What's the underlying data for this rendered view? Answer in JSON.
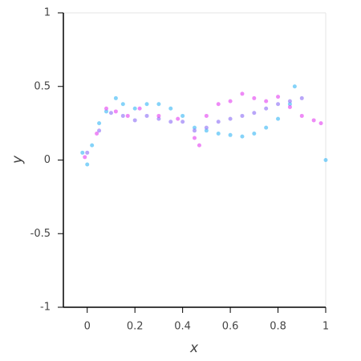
{
  "chart_data": {
    "type": "scatter",
    "x_label": "x",
    "y_label": "y",
    "xlim": [
      -0.1,
      1
    ],
    "ylim": [
      -1,
      1
    ],
    "xticks": [
      0,
      0.2,
      0.4,
      0.6,
      0.8,
      1
    ],
    "yticks": [
      -1,
      -0.5,
      0,
      0.5,
      1
    ],
    "groups": [
      {
        "color": "#33b5f5",
        "x": [
          -0.02,
          0,
          0.02,
          0.05,
          0.08,
          0.12,
          0.15,
          0.2,
          0.25,
          0.3,
          0.35,
          0.4,
          0.45,
          0.5,
          0.55,
          0.6,
          0.65,
          0.7,
          0.75,
          0.8,
          0.85,
          0.87,
          1.0
        ],
        "y": [
          0.05,
          -0.03,
          0.1,
          0.25,
          0.33,
          0.42,
          0.38,
          0.35,
          0.38,
          0.38,
          0.35,
          0.3,
          0.22,
          0.2,
          0.18,
          0.17,
          0.16,
          0.18,
          0.22,
          0.28,
          0.38,
          0.5,
          0.0
        ]
      },
      {
        "color": "#8a6af5",
        "x": [
          0,
          0.05,
          0.1,
          0.15,
          0.2,
          0.25,
          0.3,
          0.35,
          0.4,
          0.45,
          0.5,
          0.55,
          0.6,
          0.65,
          0.7,
          0.75,
          0.8,
          0.85,
          0.9
        ],
        "y": [
          0.05,
          0.2,
          0.32,
          0.3,
          0.27,
          0.3,
          0.28,
          0.26,
          0.26,
          0.2,
          0.22,
          0.26,
          0.28,
          0.3,
          0.32,
          0.35,
          0.38,
          0.4,
          0.42
        ]
      },
      {
        "color": "#e23cf0",
        "x": [
          -0.01,
          0.04,
          0.08,
          0.12,
          0.17,
          0.22,
          0.3,
          0.38,
          0.45,
          0.47,
          0.5,
          0.55,
          0.6,
          0.65,
          0.7,
          0.75,
          0.8,
          0.85,
          0.9,
          0.95,
          0.98
        ],
        "y": [
          0.02,
          0.18,
          0.35,
          0.33,
          0.3,
          0.35,
          0.3,
          0.28,
          0.15,
          0.1,
          0.3,
          0.38,
          0.4,
          0.45,
          0.42,
          0.4,
          0.43,
          0.36,
          0.3,
          0.27,
          0.25
        ]
      }
    ]
  }
}
